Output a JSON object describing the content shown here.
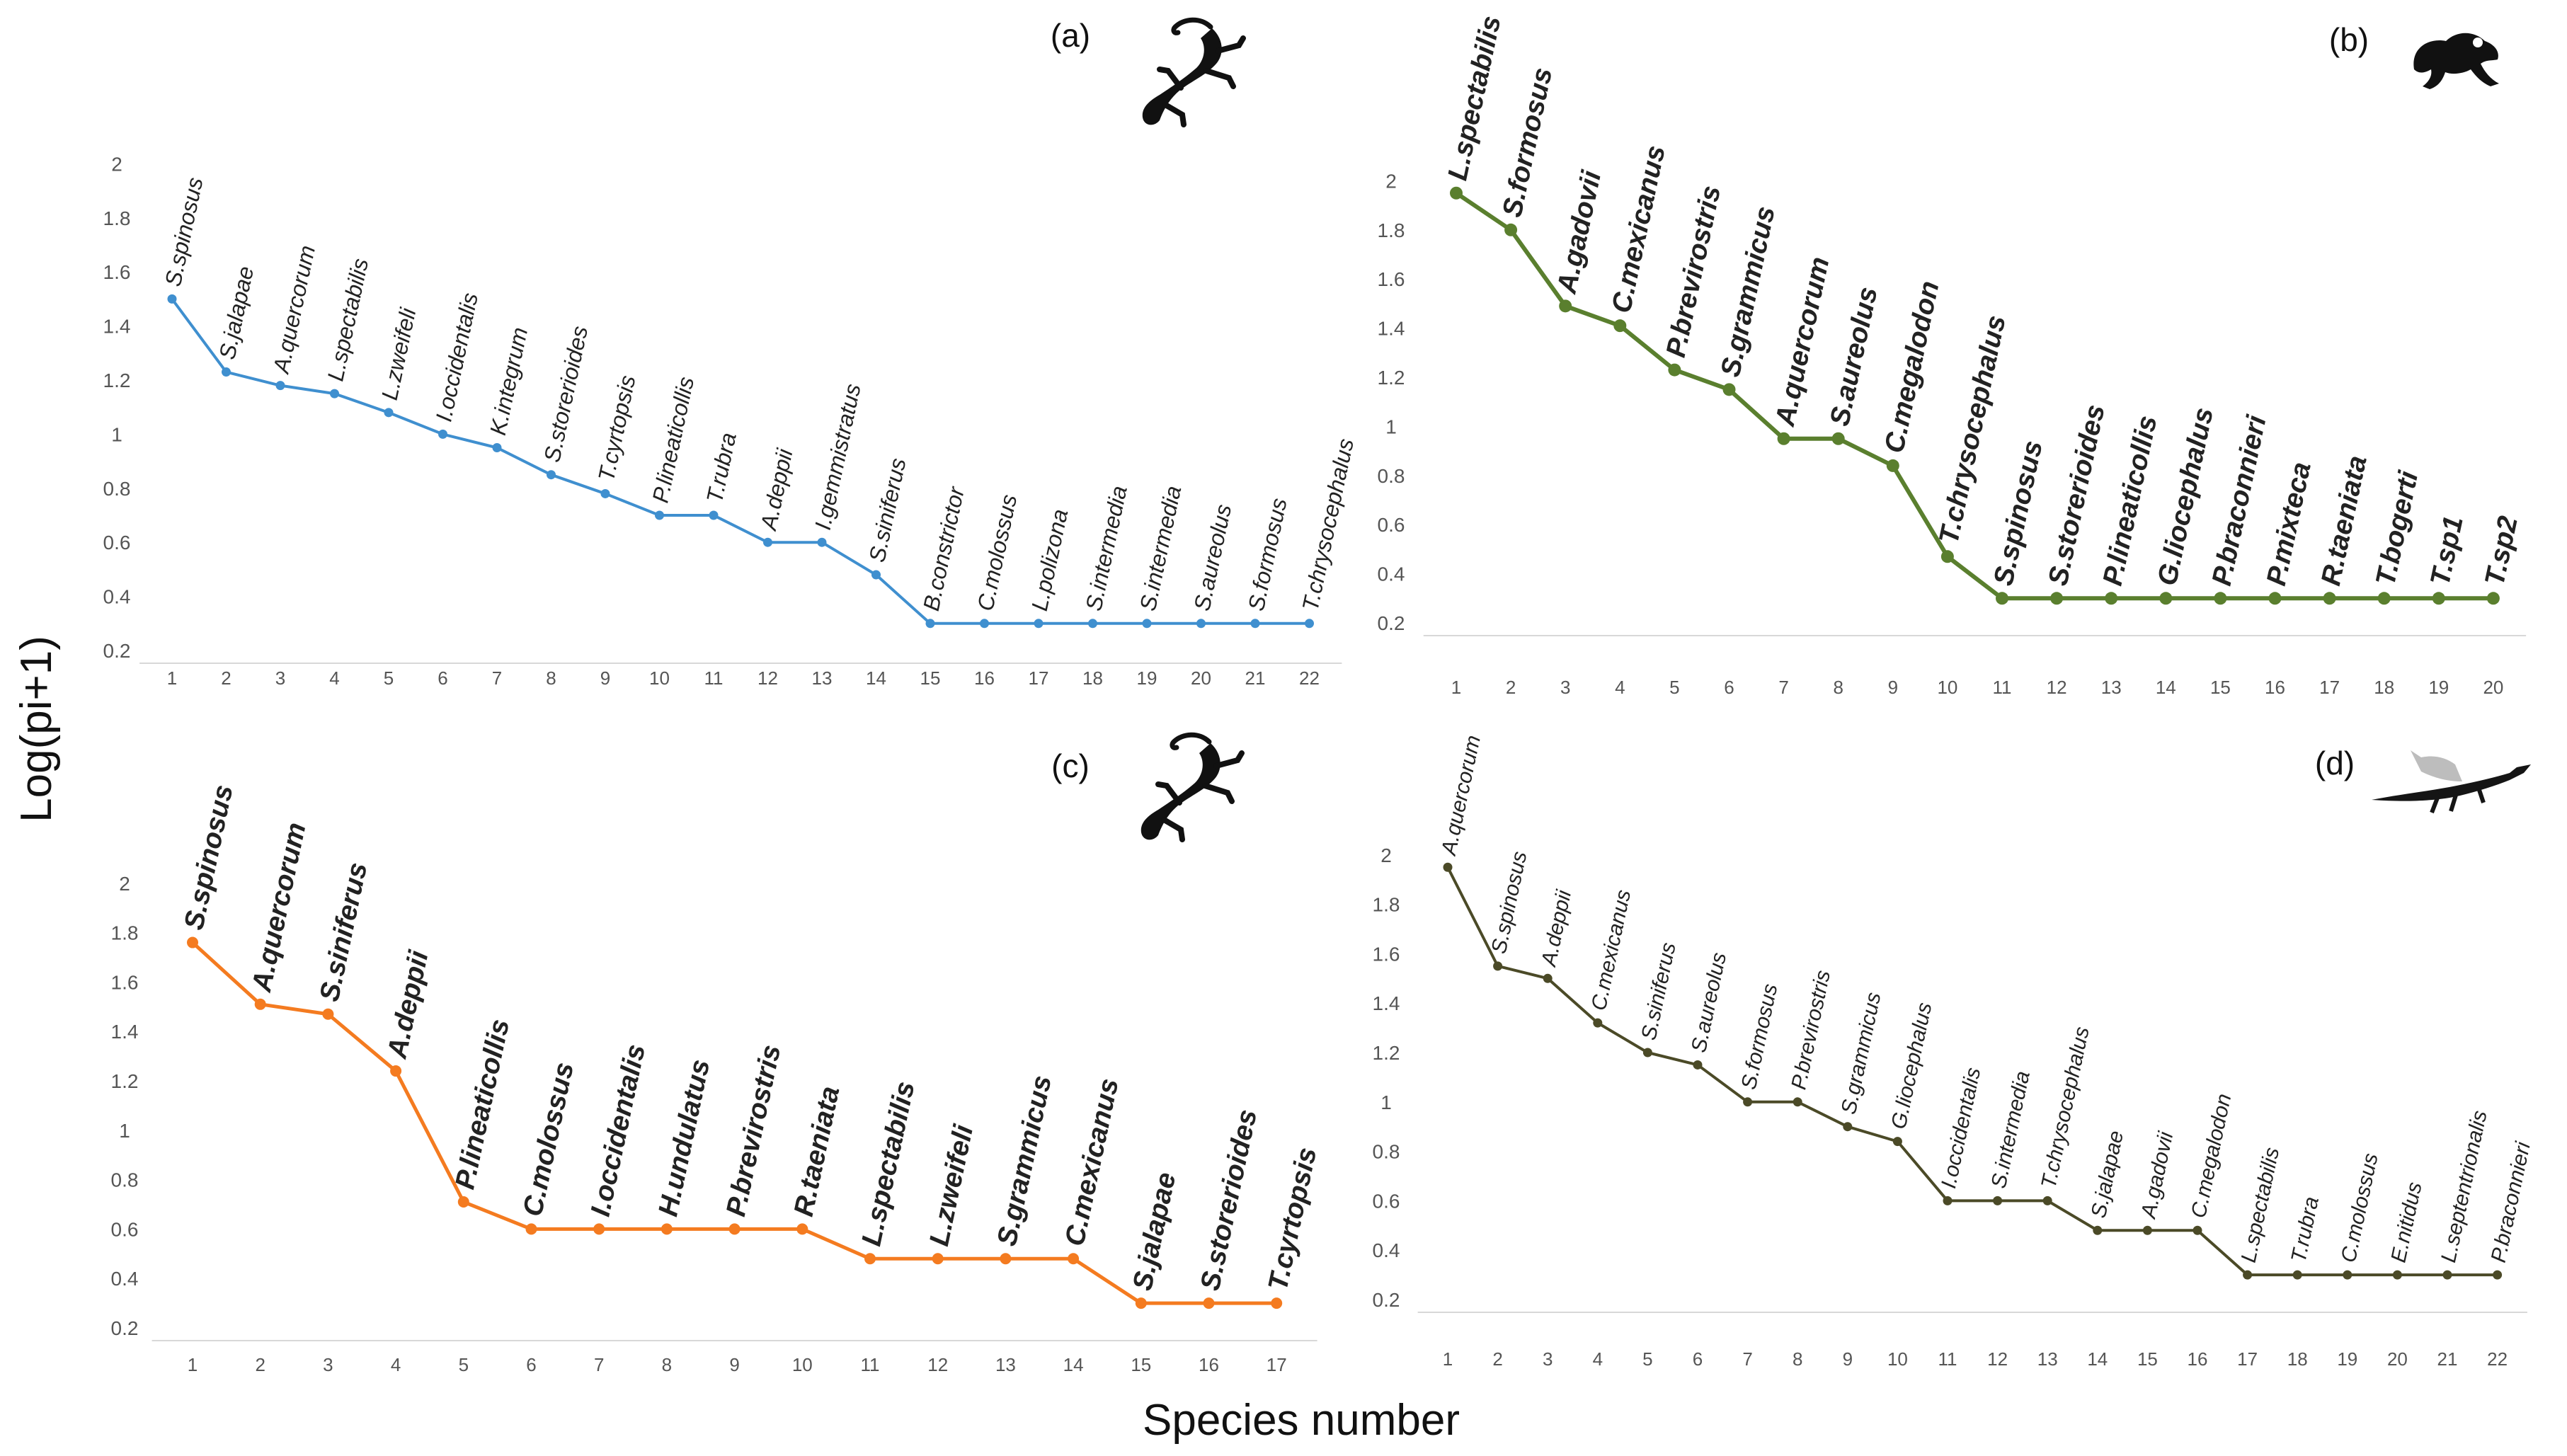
{
  "figure": {
    "ylabel": "Log(pi+1)",
    "xlabel": "Species number"
  },
  "chart_data": [
    {
      "type": "line",
      "title": "(a)",
      "icon": "salamander-icon",
      "color": "#3f8fcf",
      "ylim": [
        0.2,
        2.0
      ],
      "yticks": [
        "0.2",
        "0.4",
        "0.6",
        "0.8",
        "1",
        "1.2",
        "1.4",
        "1.6",
        "1.8",
        "2"
      ],
      "x": [
        1,
        2,
        3,
        4,
        5,
        6,
        7,
        8,
        9,
        10,
        11,
        12,
        13,
        14,
        15,
        16,
        17,
        18,
        19,
        20,
        21,
        22
      ],
      "labels": [
        "S.spinosus",
        "S.jalapae",
        "A.quercorum",
        "L.spectabilis",
        "L.zweifeli",
        "I.occidentalis",
        "K.integrum",
        "S.storerioides",
        "T.cyrtopsis",
        "P.lineaticollis",
        "T.rubra",
        "A.deppii",
        "I.gemmistratus",
        "S.siniferus",
        "B.constrictor",
        "C.molossus",
        "L.polizona",
        "S.intermedia",
        "S.intermedia",
        "S.aureolus",
        "S.formosus",
        "T.chrysocephalus"
      ],
      "values": [
        1.5,
        1.23,
        1.18,
        1.15,
        1.08,
        1.0,
        0.95,
        0.85,
        0.78,
        0.7,
        0.7,
        0.6,
        0.6,
        0.48,
        0.3,
        0.3,
        0.3,
        0.3,
        0.3,
        0.3,
        0.3,
        0.3
      ]
    },
    {
      "type": "line",
      "title": "(b)",
      "icon": "frog-icon",
      "color": "#5a7f2e",
      "ylim": [
        0.2,
        2.0
      ],
      "yticks": [
        "0.2",
        "0.4",
        "0.6",
        "0.8",
        "1",
        "1.2",
        "1.4",
        "1.6",
        "1.8",
        "2"
      ],
      "x": [
        1,
        2,
        3,
        4,
        5,
        6,
        7,
        8,
        9,
        10,
        11,
        12,
        13,
        14,
        15,
        16,
        17,
        18,
        19,
        20
      ],
      "labels": [
        "L.spectabilis",
        "S.formosus",
        "A.gadovii",
        "C.mexicanus",
        "P.brevirostris",
        "S.grammicus",
        "A.quercorum",
        "S.aureolus",
        "C.megalodon",
        "T.chrysocephalus",
        "S.spinosus",
        "S.storerioides",
        "P.lineaticollis",
        "G.liocephalus",
        "P.braconnieri",
        "P.mixteca",
        "R.taeniata",
        "T.bogerti",
        "T.sp1",
        "T.sp2"
      ],
      "values": [
        1.95,
        1.8,
        1.49,
        1.41,
        1.23,
        1.15,
        0.95,
        0.95,
        0.84,
        0.47,
        0.3,
        0.3,
        0.3,
        0.3,
        0.3,
        0.3,
        0.3,
        0.3,
        0.3,
        0.3
      ]
    },
    {
      "type": "line",
      "title": "(c)",
      "icon": "salamander-icon",
      "color": "#f47b20",
      "ylim": [
        0.2,
        2.0
      ],
      "yticks": [
        "0.2",
        "0.4",
        "0.6",
        "0.8",
        "1",
        "1.2",
        "1.4",
        "1.6",
        "1.8",
        "2"
      ],
      "x": [
        1,
        2,
        3,
        4,
        5,
        6,
        7,
        8,
        9,
        10,
        11,
        12,
        13,
        14,
        15,
        16,
        17
      ],
      "labels": [
        "S.spinosus",
        "A.quercorum",
        "S.siniferus",
        "A.deppii",
        "P.lineaticollis",
        "C.molossus",
        "I.occidentalis",
        "H.undulatus",
        "P.brevirostris",
        "R.taeniata",
        "L.spectabilis",
        "L.zweifeli",
        "S.grammicus",
        "C.mexicanus",
        "S.jalapae",
        "S.storerioides",
        "T.cyrtopsis"
      ],
      "values": [
        1.76,
        1.51,
        1.47,
        1.24,
        0.71,
        0.6,
        0.6,
        0.6,
        0.6,
        0.6,
        0.48,
        0.48,
        0.48,
        0.48,
        0.3,
        0.3,
        0.3
      ]
    },
    {
      "type": "line",
      "title": "(d)",
      "icon": "lizard-icon",
      "color": "#4b4a27",
      "ylim": [
        0.2,
        2.0
      ],
      "yticks": [
        "0.2",
        "0.4",
        "0.6",
        "0.8",
        "1",
        "1.2",
        "1.4",
        "1.6",
        "1.8",
        "2"
      ],
      "x": [
        1,
        2,
        3,
        4,
        5,
        6,
        7,
        8,
        9,
        10,
        11,
        12,
        13,
        14,
        15,
        16,
        17,
        18,
        19,
        20,
        21,
        22
      ],
      "labels": [
        "A.quercorum",
        "S.spinosus",
        "A.deppii",
        "C.mexicanus",
        "S.siniferus",
        "S.aureolus",
        "S.formosus",
        "P.brevirostris",
        "S.grammicus",
        "G.liocephalus",
        "I.occidentalis",
        "S.intermedia",
        "T.chrysocephalus",
        "S.jalapae",
        "A.gadovii",
        "C.megalodon",
        "L.spectabilis",
        "T.rubra",
        "C.molossus",
        "E.nitidus",
        "L.septentrionalis",
        "P.braconnieri"
      ],
      "values": [
        1.95,
        1.55,
        1.5,
        1.32,
        1.2,
        1.15,
        1.0,
        1.0,
        0.9,
        0.84,
        0.6,
        0.6,
        0.6,
        0.48,
        0.48,
        0.48,
        0.3,
        0.3,
        0.3,
        0.3,
        0.3,
        0.3
      ]
    }
  ]
}
